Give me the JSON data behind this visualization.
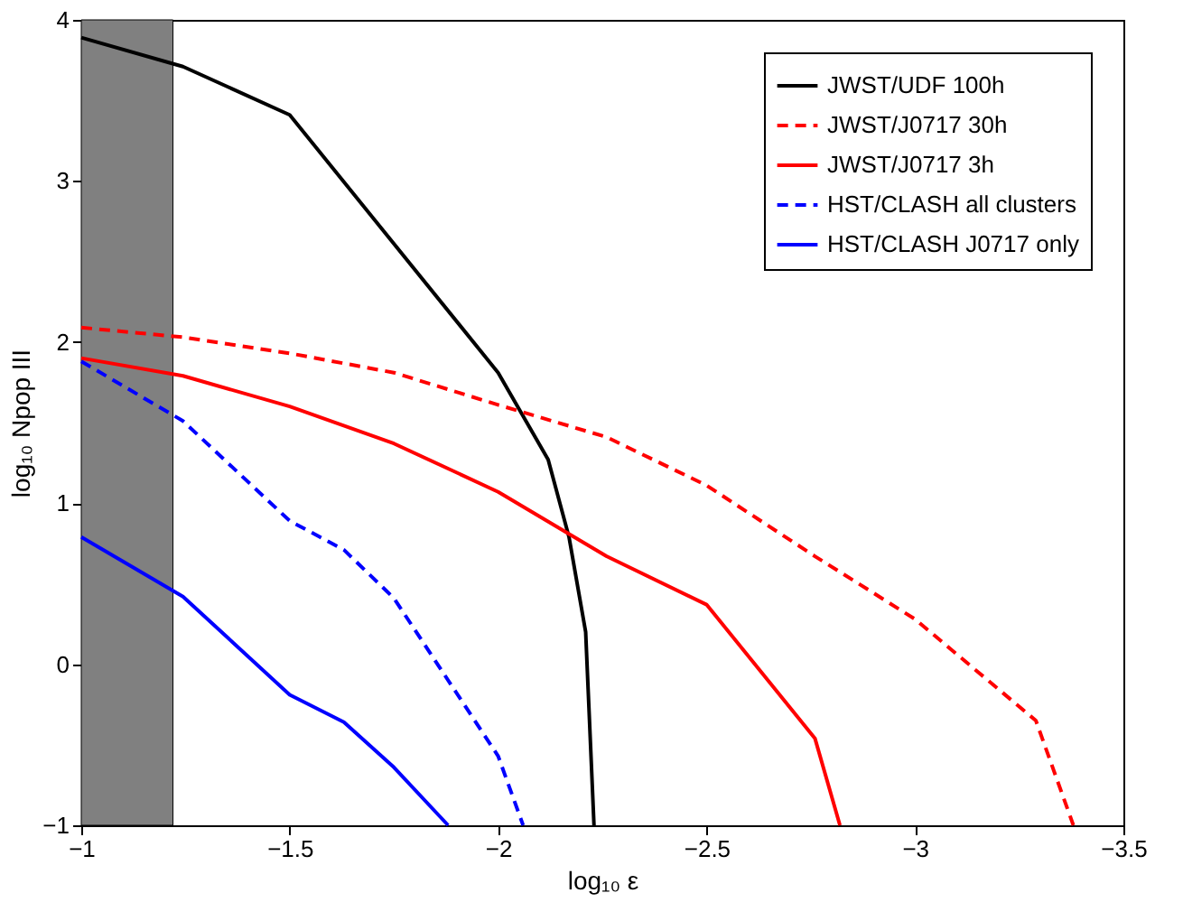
{
  "chart_data": {
    "type": "line",
    "xlabel": "log₁₀ ε",
    "ylabel": "log₁₀ Npop III",
    "xlim": [
      -1,
      -3.5
    ],
    "xticks": [
      -1,
      -1.5,
      -2,
      -2.5,
      -3,
      -3.5
    ],
    "ylim": [
      -1,
      4
    ],
    "yticks": [
      -1,
      0,
      1,
      2,
      3,
      4
    ],
    "grid": false,
    "legend": "top right",
    "bands": [
      {
        "axis": "x",
        "from": -1,
        "to": -1.22,
        "color": "#808080"
      }
    ],
    "series": [
      {
        "name": "JWST/UDF 100h",
        "color": "#000000",
        "line_style": "solid",
        "x": [
          -1,
          -1.244,
          -1.5,
          -2,
          -2.12,
          -2.17,
          -2.21,
          -2.23
        ],
        "values": [
          3.89,
          3.71,
          3.41,
          1.81,
          1.27,
          0.79,
          0.2,
          -1
        ]
      },
      {
        "name": "JWST/J0717 30h",
        "color": "#ff0000",
        "line_style": "dashed",
        "x": [
          -1,
          -1.244,
          -1.5,
          -1.75,
          -2,
          -2.26,
          -2.5,
          -2.76,
          -3,
          -3.29,
          -3.38
        ],
        "values": [
          2.09,
          2.03,
          1.93,
          1.81,
          1.61,
          1.41,
          1.11,
          0.67,
          0.28,
          -0.35,
          -1
        ]
      },
      {
        "name": "JWST/J0717 3h",
        "color": "#ff0000",
        "line_style": "solid",
        "x": [
          -1,
          -1.244,
          -1.5,
          -1.75,
          -2,
          -2.26,
          -2.5,
          -2.76,
          -2.82
        ],
        "values": [
          1.9,
          1.79,
          1.6,
          1.37,
          1.07,
          0.67,
          0.37,
          -0.46,
          -1
        ]
      },
      {
        "name": "HST/CLASH all clusters",
        "color": "#0000ff",
        "line_style": "dashed",
        "x": [
          -1,
          -1.244,
          -1.5,
          -1.63,
          -1.75,
          -2,
          -2.06
        ],
        "values": [
          1.88,
          1.51,
          0.89,
          0.71,
          0.41,
          -0.57,
          -1
        ]
      },
      {
        "name": "HST/CLASH J0717 only",
        "color": "#0000ff",
        "line_style": "solid",
        "x": [
          -1,
          -1.244,
          -1.5,
          -1.63,
          -1.75,
          -1.88
        ],
        "values": [
          0.79,
          0.42,
          -0.19,
          -0.36,
          -0.64,
          -1
        ]
      }
    ]
  }
}
